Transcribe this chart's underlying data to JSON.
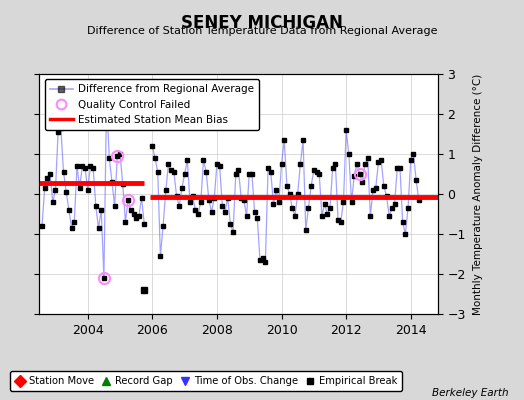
{
  "title": "SENEY MICHIGAN",
  "subtitle": "Difference of Station Temperature Data from Regional Average",
  "ylabel_right": "Monthly Temperature Anomaly Difference (°C)",
  "credit": "Berkeley Earth",
  "xlim": [
    2002.5,
    2014.83
  ],
  "ylim": [
    -3,
    3
  ],
  "yticks": [
    -3,
    -2,
    -1,
    0,
    1,
    2,
    3
  ],
  "xticks": [
    2004,
    2006,
    2008,
    2010,
    2012,
    2014
  ],
  "background_color": "#d8d8d8",
  "plot_bg_color": "#ffffff",
  "main_line_color": "#6666ff",
  "main_line_alpha": 0.6,
  "main_marker_color": "#000000",
  "bias_line_color": "#ff0000",
  "qc_failed_color": "#ff88ff",
  "segment1_bias": 0.28,
  "segment2_bias": -0.07,
  "segment1_xstart": 2002.5,
  "segment1_xend": 2005.75,
  "segment2_xstart": 2005.92,
  "segment2_xend": 2014.83,
  "empirical_break_x": 2005.75,
  "empirical_break_y": -2.4,
  "time_series": [
    [
      2002.583,
      -0.8
    ],
    [
      2002.667,
      0.15
    ],
    [
      2002.75,
      0.4
    ],
    [
      2002.833,
      0.5
    ],
    [
      2002.917,
      -0.2
    ],
    [
      2003.0,
      0.1
    ],
    [
      2003.083,
      1.55
    ],
    [
      2003.167,
      1.65
    ],
    [
      2003.25,
      0.55
    ],
    [
      2003.333,
      0.05
    ],
    [
      2003.417,
      -0.4
    ],
    [
      2003.5,
      -0.85
    ],
    [
      2003.583,
      -0.7
    ],
    [
      2003.667,
      0.7
    ],
    [
      2003.75,
      0.15
    ],
    [
      2003.833,
      0.7
    ],
    [
      2003.917,
      0.65
    ],
    [
      2004.0,
      0.1
    ],
    [
      2004.083,
      0.7
    ],
    [
      2004.167,
      0.65
    ],
    [
      2004.25,
      -0.3
    ],
    [
      2004.333,
      -0.85
    ],
    [
      2004.417,
      -0.4
    ],
    [
      2004.5,
      -2.1
    ],
    [
      2004.583,
      2.4
    ],
    [
      2004.667,
      0.9
    ],
    [
      2004.75,
      0.3
    ],
    [
      2004.833,
      -0.3
    ],
    [
      2004.917,
      0.95
    ],
    [
      2005.0,
      1.0
    ],
    [
      2005.083,
      0.25
    ],
    [
      2005.167,
      -0.7
    ],
    [
      2005.25,
      -0.15
    ],
    [
      2005.333,
      -0.4
    ],
    [
      2005.417,
      -0.5
    ],
    [
      2005.5,
      -0.6
    ],
    [
      2005.583,
      -0.55
    ],
    [
      2005.667,
      -0.1
    ],
    [
      2005.75,
      -0.75
    ],
    [
      2006.0,
      1.2
    ],
    [
      2006.083,
      0.9
    ],
    [
      2006.167,
      0.55
    ],
    [
      2006.25,
      -1.55
    ],
    [
      2006.333,
      -0.8
    ],
    [
      2006.417,
      0.1
    ],
    [
      2006.5,
      0.75
    ],
    [
      2006.583,
      0.6
    ],
    [
      2006.667,
      0.55
    ],
    [
      2006.75,
      -0.05
    ],
    [
      2006.833,
      -0.3
    ],
    [
      2006.917,
      0.15
    ],
    [
      2007.0,
      0.5
    ],
    [
      2007.083,
      0.85
    ],
    [
      2007.167,
      -0.2
    ],
    [
      2007.25,
      -0.05
    ],
    [
      2007.333,
      -0.4
    ],
    [
      2007.417,
      -0.5
    ],
    [
      2007.5,
      -0.2
    ],
    [
      2007.583,
      0.85
    ],
    [
      2007.667,
      0.55
    ],
    [
      2007.75,
      -0.15
    ],
    [
      2007.833,
      -0.45
    ],
    [
      2007.917,
      -0.1
    ],
    [
      2008.0,
      0.75
    ],
    [
      2008.083,
      0.7
    ],
    [
      2008.167,
      -0.3
    ],
    [
      2008.25,
      -0.45
    ],
    [
      2008.333,
      -0.1
    ],
    [
      2008.417,
      -0.75
    ],
    [
      2008.5,
      -0.95
    ],
    [
      2008.583,
      0.5
    ],
    [
      2008.667,
      0.6
    ],
    [
      2008.75,
      -0.1
    ],
    [
      2008.833,
      -0.15
    ],
    [
      2008.917,
      -0.55
    ],
    [
      2009.0,
      0.5
    ],
    [
      2009.083,
      0.5
    ],
    [
      2009.167,
      -0.45
    ],
    [
      2009.25,
      -0.6
    ],
    [
      2009.333,
      -1.65
    ],
    [
      2009.417,
      -1.6
    ],
    [
      2009.5,
      -1.7
    ],
    [
      2009.583,
      0.65
    ],
    [
      2009.667,
      0.55
    ],
    [
      2009.75,
      -0.25
    ],
    [
      2009.833,
      0.1
    ],
    [
      2009.917,
      -0.2
    ],
    [
      2010.0,
      0.75
    ],
    [
      2010.083,
      1.35
    ],
    [
      2010.167,
      0.2
    ],
    [
      2010.25,
      0.0
    ],
    [
      2010.333,
      -0.35
    ],
    [
      2010.417,
      -0.55
    ],
    [
      2010.5,
      0.0
    ],
    [
      2010.583,
      0.75
    ],
    [
      2010.667,
      1.35
    ],
    [
      2010.75,
      -0.9
    ],
    [
      2010.833,
      -0.35
    ],
    [
      2010.917,
      0.2
    ],
    [
      2011.0,
      0.6
    ],
    [
      2011.083,
      0.55
    ],
    [
      2011.167,
      0.5
    ],
    [
      2011.25,
      -0.55
    ],
    [
      2011.333,
      -0.25
    ],
    [
      2011.417,
      -0.5
    ],
    [
      2011.5,
      -0.35
    ],
    [
      2011.583,
      0.65
    ],
    [
      2011.667,
      0.75
    ],
    [
      2011.75,
      -0.65
    ],
    [
      2011.833,
      -0.7
    ],
    [
      2011.917,
      -0.2
    ],
    [
      2012.0,
      1.6
    ],
    [
      2012.083,
      1.0
    ],
    [
      2012.167,
      -0.2
    ],
    [
      2012.25,
      0.45
    ],
    [
      2012.333,
      0.75
    ],
    [
      2012.417,
      0.5
    ],
    [
      2012.5,
      0.3
    ],
    [
      2012.583,
      0.75
    ],
    [
      2012.667,
      0.9
    ],
    [
      2012.75,
      -0.55
    ],
    [
      2012.833,
      0.1
    ],
    [
      2012.917,
      0.15
    ],
    [
      2013.0,
      0.8
    ],
    [
      2013.083,
      0.85
    ],
    [
      2013.167,
      0.2
    ],
    [
      2013.25,
      -0.05
    ],
    [
      2013.333,
      -0.55
    ],
    [
      2013.417,
      -0.35
    ],
    [
      2013.5,
      -0.25
    ],
    [
      2013.583,
      0.65
    ],
    [
      2013.667,
      0.65
    ],
    [
      2013.75,
      -0.7
    ],
    [
      2013.833,
      -1.0
    ],
    [
      2013.917,
      -0.35
    ],
    [
      2014.0,
      0.85
    ],
    [
      2014.083,
      1.0
    ],
    [
      2014.167,
      0.35
    ],
    [
      2014.25,
      -0.15
    ]
  ],
  "qc_failed_points": [
    [
      2004.5,
      -2.1
    ],
    [
      2004.917,
      0.95
    ],
    [
      2005.25,
      -0.15
    ],
    [
      2012.417,
      0.5
    ]
  ]
}
